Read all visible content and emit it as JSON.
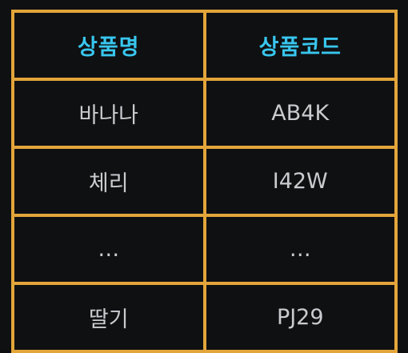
{
  "table": {
    "headers": [
      "상품명",
      "상품코드"
    ],
    "rows": [
      [
        "바나나",
        "AB4K"
      ],
      [
        "체리",
        "I42W"
      ],
      [
        "…",
        "…"
      ],
      [
        "딸기",
        "PJ29"
      ]
    ]
  },
  "colors": {
    "background": "#0f1012",
    "border": "#e3a53a",
    "header_text": "#38c6ee",
    "cell_text": "#c9cbcf"
  }
}
